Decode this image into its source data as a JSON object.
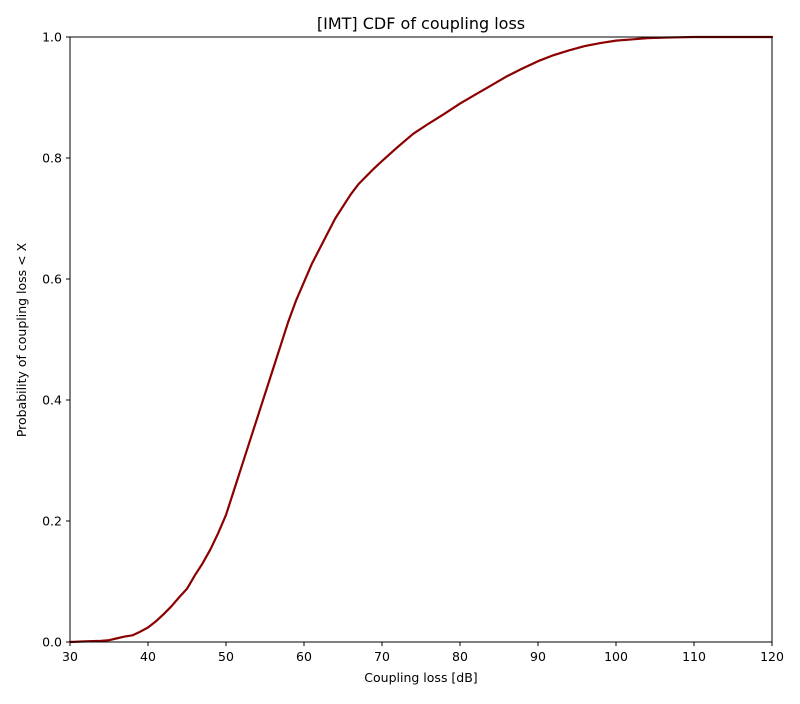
{
  "chart_data": {
    "type": "line",
    "title": "[IMT] CDF of coupling loss",
    "xlabel": "Coupling loss [dB]",
    "ylabel": "Probability of coupling loss < X",
    "xlim": [
      30,
      120
    ],
    "ylim": [
      0.0,
      1.0
    ],
    "x_ticks": [
      30,
      40,
      50,
      60,
      70,
      80,
      90,
      100,
      110,
      120
    ],
    "x_tick_labels": [
      "30",
      "40",
      "50",
      "60",
      "70",
      "80",
      "90",
      "100",
      "110",
      "120"
    ],
    "y_ticks": [
      0.0,
      0.2,
      0.4,
      0.6,
      0.8,
      1.0
    ],
    "y_tick_labels": [
      "0.0",
      "0.2",
      "0.4",
      "0.6",
      "0.8",
      "1.0"
    ],
    "grid": false,
    "legend": "none",
    "series": [
      {
        "color": "#8b0000",
        "x": [
          30,
          32,
          34,
          35,
          36,
          37,
          38,
          39,
          40,
          41,
          42,
          43,
          44,
          45,
          46,
          47,
          48,
          49,
          50,
          51,
          52,
          53,
          54,
          55,
          56,
          57,
          58,
          59,
          60,
          61,
          62,
          63,
          64,
          65,
          66,
          67,
          68,
          69,
          70,
          72,
          74,
          76,
          78,
          80,
          82,
          84,
          86,
          88,
          90,
          92,
          94,
          96,
          98,
          100,
          102,
          104,
          106,
          108,
          110,
          115,
          120
        ],
        "y": [
          0.0,
          0.001,
          0.002,
          0.003,
          0.006,
          0.009,
          0.011,
          0.017,
          0.024,
          0.034,
          0.046,
          0.059,
          0.074,
          0.088,
          0.11,
          0.13,
          0.153,
          0.18,
          0.21,
          0.25,
          0.29,
          0.33,
          0.37,
          0.41,
          0.45,
          0.49,
          0.53,
          0.565,
          0.595,
          0.625,
          0.65,
          0.675,
          0.7,
          0.72,
          0.74,
          0.757,
          0.77,
          0.783,
          0.795,
          0.818,
          0.84,
          0.857,
          0.873,
          0.89,
          0.905,
          0.92,
          0.935,
          0.948,
          0.96,
          0.97,
          0.978,
          0.985,
          0.99,
          0.994,
          0.996,
          0.998,
          0.999,
          0.9995,
          1.0,
          1.0,
          1.0
        ]
      }
    ]
  }
}
